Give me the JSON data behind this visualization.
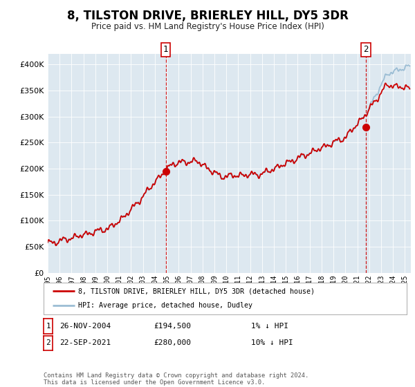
{
  "title": "8, TILSTON DRIVE, BRIERLEY HILL, DY5 3DR",
  "subtitle": "Price paid vs. HM Land Registry's House Price Index (HPI)",
  "legend_line1": "8, TILSTON DRIVE, BRIERLEY HILL, DY5 3DR (detached house)",
  "legend_line2": "HPI: Average price, detached house, Dudley",
  "annotation1_date": "26-NOV-2004",
  "annotation1_price": "£194,500",
  "annotation1_hpi": "1% ↓ HPI",
  "annotation2_date": "22-SEP-2021",
  "annotation2_price": "£280,000",
  "annotation2_hpi": "10% ↓ HPI",
  "footnote_line1": "Contains HM Land Registry data © Crown copyright and database right 2024.",
  "footnote_line2": "This data is licensed under the Open Government Licence v3.0.",
  "hpi_color": "#9bbdd4",
  "price_color": "#cc0000",
  "dot_color": "#cc0000",
  "vline_color": "#cc0000",
  "plot_bg_color": "#dde8f0",
  "grid_color": "#ffffff",
  "ylim": [
    0,
    420000
  ],
  "xlim_start": 1995.0,
  "xlim_end": 2025.5,
  "sale1_x": 2004.91,
  "sale1_y": 194500,
  "sale2_x": 2021.72,
  "sale2_y": 280000,
  "vline1_x": 2004.91,
  "vline2_x": 2021.72,
  "yticks": [
    0,
    50000,
    100000,
    150000,
    200000,
    250000,
    300000,
    350000,
    400000
  ]
}
